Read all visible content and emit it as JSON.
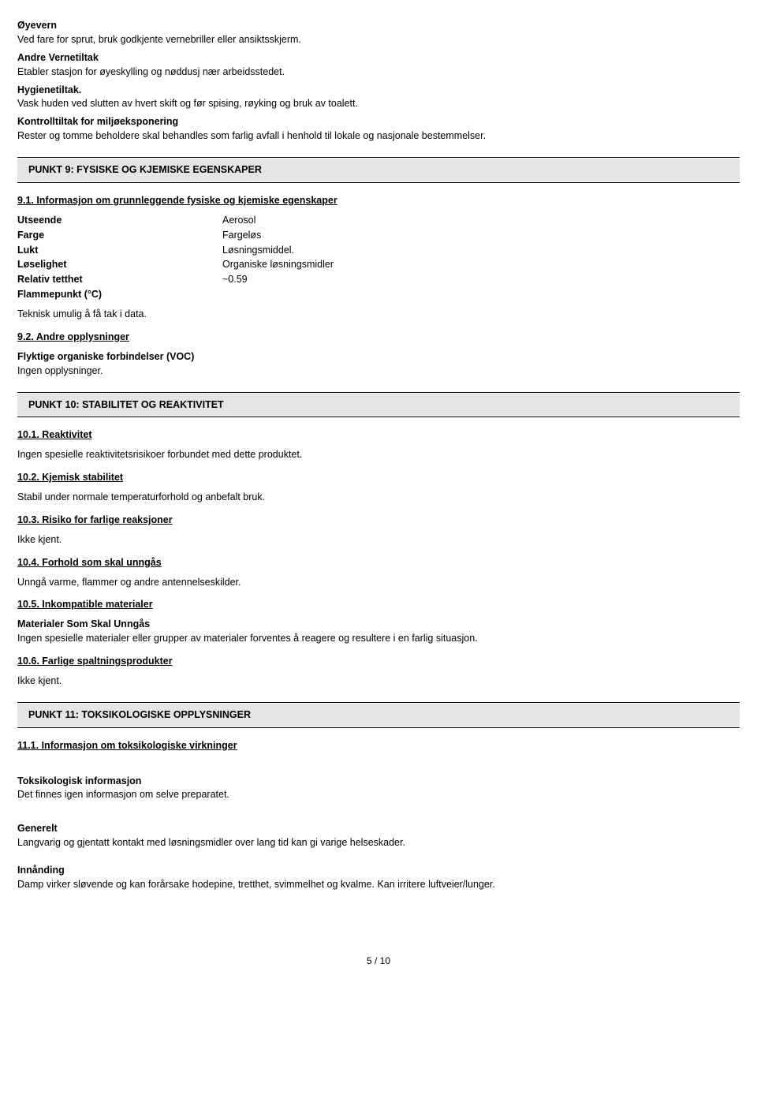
{
  "eye_protection": {
    "heading": "Øyevern",
    "text": "Ved fare for sprut,  bruk godkjente vernebriller eller ansiktsskjerm."
  },
  "other_measures": {
    "heading": "Andre Vernetiltak",
    "text": "Etabler stasjon for øyeskylling og nøddusj nær arbeidsstedet."
  },
  "hygiene": {
    "heading": "Hygienetiltak.",
    "text": "Vask huden ved slutten av hvert skift og før spising,  røyking og bruk av toalett."
  },
  "env_control": {
    "heading": "Kontrolltiltak for miljøeksponering",
    "text": "Rester og tomme beholdere skal behandles som farlig avfall i henhold til lokale og nasjonale bestemmelser."
  },
  "section9": {
    "title": "PUNKT 9: FYSISKE OG KJEMISKE EGENSKAPER",
    "s91": {
      "heading": "9.1. Informasjon om grunnleggende fysiske og kjemiske egenskaper",
      "properties": {
        "appearance": {
          "label": "Utseende",
          "value": "Aerosol"
        },
        "color": {
          "label": "Farge",
          "value": "Fargeløs"
        },
        "odor": {
          "label": "Lukt",
          "value": "Løsningsmiddel."
        },
        "solubility": {
          "label": "Løselighet",
          "value": "Organiske løsningsmidler"
        },
        "rel_density": {
          "label": "Relativ tetthet",
          "value": "~0.59"
        },
        "flash_point": {
          "label": "Flammepunkt (°C)",
          "value": ""
        }
      },
      "tech_note": "Teknisk umulig å få tak i data."
    },
    "s92": {
      "heading": "9.2. Andre opplysninger",
      "voc_heading": "Flyktige organiske forbindelser (VOC)",
      "voc_text": "Ingen opplysninger."
    }
  },
  "section10": {
    "title": "PUNKT 10: STABILITET OG REAKTIVITET",
    "s101": {
      "heading": "10.1. Reaktivitet",
      "text": "Ingen spesielle reaktivitetsrisikoer forbundet med dette produktet."
    },
    "s102": {
      "heading": "10.2. Kjemisk stabilitet",
      "text": "Stabil under normale temperaturforhold og anbefalt bruk."
    },
    "s103": {
      "heading": "10.3. Risiko for farlige reaksjoner",
      "text": "Ikke kjent."
    },
    "s104": {
      "heading": "10.4. Forhold som skal unngås",
      "text": "Unngå varme,  flammer og andre antennelseskilder."
    },
    "s105": {
      "heading": "10.5. Inkompatible materialer",
      "sub_heading": "Materialer Som Skal Unngås",
      "text": "Ingen spesielle materialer eller grupper av materialer forventes å reagere og resultere i en farlig situasjon."
    },
    "s106": {
      "heading": "10.6. Farlige spaltningsprodukter",
      "text": "Ikke kjent."
    }
  },
  "section11": {
    "title": "PUNKT 11: TOKSIKOLOGISKE OPPLYSNINGER",
    "s111": {
      "heading": "11.1. Informasjon om toksikologiske virkninger"
    },
    "tox_info": {
      "heading": "Toksikologisk informasjon",
      "text": "Det finnes igen informasjon om selve preparatet."
    },
    "general": {
      "heading": "Generelt",
      "text": "Langvarig og gjentatt kontakt med løsningsmidler over lang tid kan gi varige helseskader."
    },
    "inhalation": {
      "heading": "Innånding",
      "text": "Damp virker sløvende og kan forårsake hodepine,  tretthet,  svimmelhet og kvalme. Kan irritere luftveier/lunger."
    }
  },
  "footer": {
    "page": "5 /  10"
  }
}
